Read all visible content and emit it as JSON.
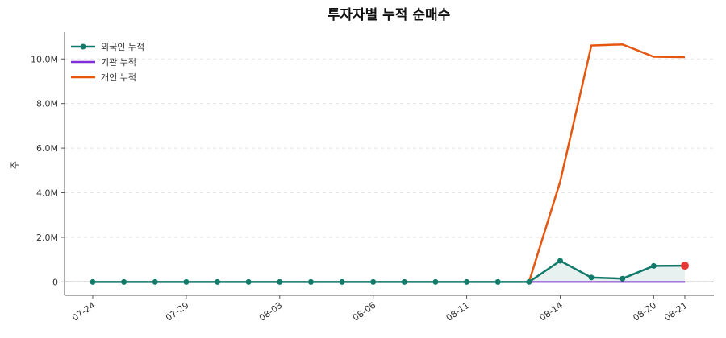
{
  "chart_data": {
    "type": "line",
    "title": "투자자별 누적 순매수",
    "y_label": "주",
    "categories": [
      "07-24",
      null,
      null,
      "07-29",
      null,
      null,
      "08-03",
      null,
      null,
      "08-06",
      null,
      null,
      "08-11",
      null,
      null,
      "08-14",
      null,
      null,
      "08-20",
      "08-21"
    ],
    "series": [
      {
        "name": "외국인 누적",
        "color": "#127a6a",
        "values": [
          0,
          0,
          0,
          0,
          0,
          0,
          0,
          0,
          0,
          0,
          0,
          0,
          0,
          0,
          0,
          950000,
          200000,
          150000,
          720000,
          730000
        ]
      },
      {
        "name": "기관 누적",
        "color": "#7e2fd8",
        "values": [
          null,
          null,
          null,
          null,
          null,
          null,
          null,
          null,
          null,
          null,
          null,
          null,
          null,
          null,
          0,
          0,
          0,
          0,
          0,
          0
        ]
      },
      {
        "name": "개인 누적",
        "color": "#e5560f",
        "values": [
          null,
          null,
          null,
          null,
          null,
          null,
          null,
          null,
          null,
          null,
          null,
          null,
          null,
          null,
          0,
          4500000,
          10600000,
          10650000,
          10100000,
          10080000
        ]
      }
    ],
    "ylim": [
      -600000,
      11200000
    ],
    "yticks": [
      0,
      {
        "value": 2000000,
        "label": "2.0M"
      },
      {
        "value": 4000000,
        "label": "4.0M"
      },
      {
        "value": 6000000,
        "label": "6.0M"
      },
      {
        "value": 8000000,
        "label": "8.0M"
      },
      {
        "value": 10000000,
        "label": "10.0M"
      }
    ],
    "grid": true,
    "legend": "upper-left",
    "highlight_color": "#e53935",
    "fill_color": "#127a6a"
  }
}
